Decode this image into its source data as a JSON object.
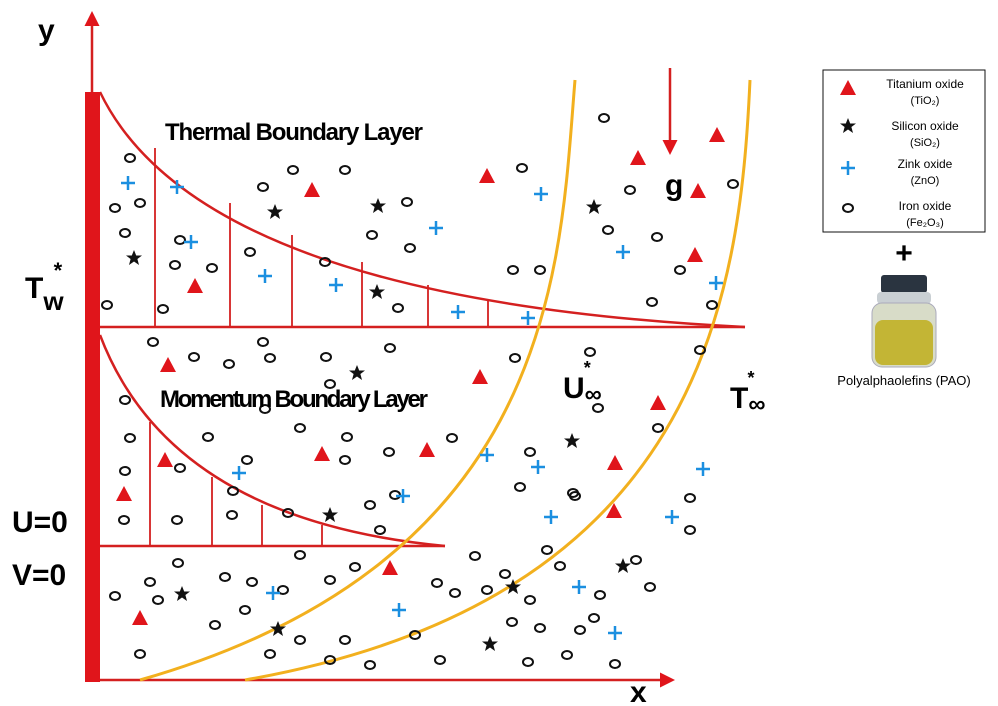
{
  "axes": {
    "y": "y",
    "x": "x"
  },
  "labels": {
    "wall_temperature": {
      "base": "T",
      "sub": "w",
      "sup": "*"
    },
    "u0": "U=0",
    "v0": "V=0",
    "thermal_layer": "Thermal Boundary Layer",
    "momentum_layer": "Momentum Boundary Layer",
    "gravity": "g",
    "free_velocity": {
      "base": "U",
      "sub": "∞",
      "sup": "*"
    },
    "free_temperature": {
      "base": "T",
      "sub": "∞",
      "sup": "*"
    }
  },
  "legend": {
    "items": [
      {
        "name": "Titanium oxide",
        "formula": "(TiO₂)"
      },
      {
        "name": "Silicon oxide",
        "formula": "(SiO₂)"
      },
      {
        "name": "Zink oxide",
        "formula": "(ZnO)"
      },
      {
        "name": "Iron oxide",
        "formula": "(Fe₂O₃)"
      }
    ],
    "plus": "+",
    "base_fluid": "Polyalphaolefins (PAO)"
  }
}
